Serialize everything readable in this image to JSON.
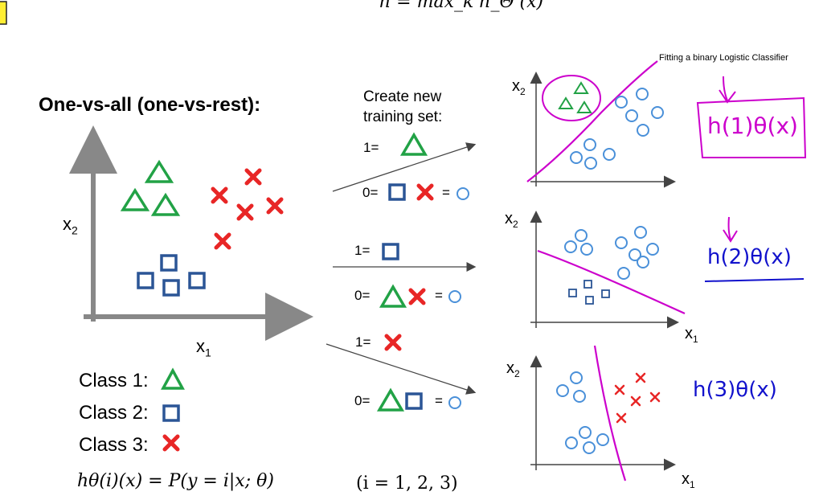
{
  "title": "One-vs-all (one-vs-rest):",
  "formula_top": "h = max_k h_Θ (x)",
  "main_plot": {
    "x_label": "x",
    "x_sub": "1",
    "y_label": "x",
    "y_sub": "2"
  },
  "create_set": {
    "line1": "Create new",
    "line2": "training set:"
  },
  "training_sets": [
    {
      "pos_label": "1=",
      "neg_label": "0=",
      "eq": "="
    },
    {
      "pos_label": "1=",
      "neg_label": "0=",
      "eq": "="
    },
    {
      "pos_label": "1=",
      "neg_label": "0=",
      "eq": "="
    }
  ],
  "legend": [
    {
      "label": "Class 1:",
      "symbol": "triangle-icon",
      "color": "#22a246"
    },
    {
      "label": "Class 2:",
      "symbol": "square-icon",
      "color": "#2b5596"
    },
    {
      "label": "Class 3:",
      "symbol": "cross-icon",
      "color": "#e82626"
    }
  ],
  "formula_bottom": {
    "lhs": "hθ(i)(x) = P(y = i|x; θ)",
    "range": "(i = 1, 2, 3)"
  },
  "note": "Fitting a binary Logistic Classifier",
  "small_plots": [
    {
      "x_label": "",
      "y_label": "x",
      "y_sub": "2",
      "classifier": "h(1)θ(x)"
    },
    {
      "x_label": "x",
      "x_sub": "1",
      "y_label": "x",
      "y_sub": "2",
      "classifier": "h(2)θ(x)"
    },
    {
      "x_label": "x",
      "x_sub": "1",
      "y_label": "x",
      "y_sub": "2",
      "classifier": "h(3)θ(x)"
    }
  ],
  "colors": {
    "green": "#22a246",
    "blue": "#2b5596",
    "red": "#e82626",
    "circle": "#4a90d9",
    "magenta": "#cc00cc",
    "ink": "#1111cc",
    "axis": "#888888"
  }
}
